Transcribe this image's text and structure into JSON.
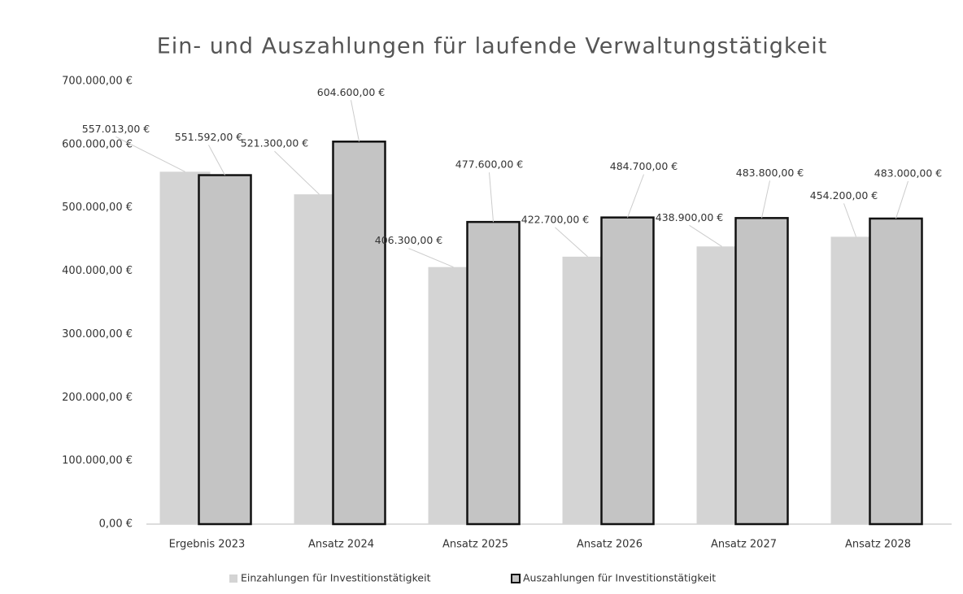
{
  "chart_data": {
    "type": "bar",
    "title": "Ein- und Auszahlungen für laufende Verwaltungstätigkeit",
    "categories": [
      "Ergebnis 2023",
      "Ansatz 2024",
      "Ansatz 2025",
      "Ansatz 2026",
      "Ansatz 2027",
      "Ansatz 2028"
    ],
    "series": [
      {
        "name": "Einzahlungen für Investitionstätigkeit",
        "color": "#d4d4d4",
        "values": [
          557013,
          521300,
          406300,
          422700,
          438900,
          454200
        ],
        "value_labels": [
          "557.013,00 €",
          "521.300,00 €",
          "406.300,00 €",
          "422.700,00 €",
          "438.900,00 €",
          "454.200,00 €"
        ]
      },
      {
        "name": "Auszahlungen für Investitionstätigkeit",
        "color": "#c4c4c4",
        "values": [
          551592,
          604600,
          477600,
          484700,
          483800,
          483000
        ],
        "value_labels": [
          "551.592,00 €",
          "604.600,00 €",
          "477.600,00 €",
          "484.700,00 €",
          "483.800,00 €",
          "483.000,00 €"
        ]
      }
    ],
    "ylim": [
      0,
      700000
    ],
    "yticks": [
      {
        "value": 0,
        "label": "0,00 €"
      },
      {
        "value": 100000,
        "label": "100.000,00 €"
      },
      {
        "value": 200000,
        "label": "200.000,00 €"
      },
      {
        "value": 300000,
        "label": "300.000,00 €"
      },
      {
        "value": 400000,
        "label": "400.000,00 €"
      },
      {
        "value": 500000,
        "label": "500.000,00 €"
      },
      {
        "value": 600000,
        "label": "600.000,00 €"
      },
      {
        "value": 700000,
        "label": "700.000,00 €"
      }
    ],
    "grid": false,
    "legend": "bottom"
  }
}
